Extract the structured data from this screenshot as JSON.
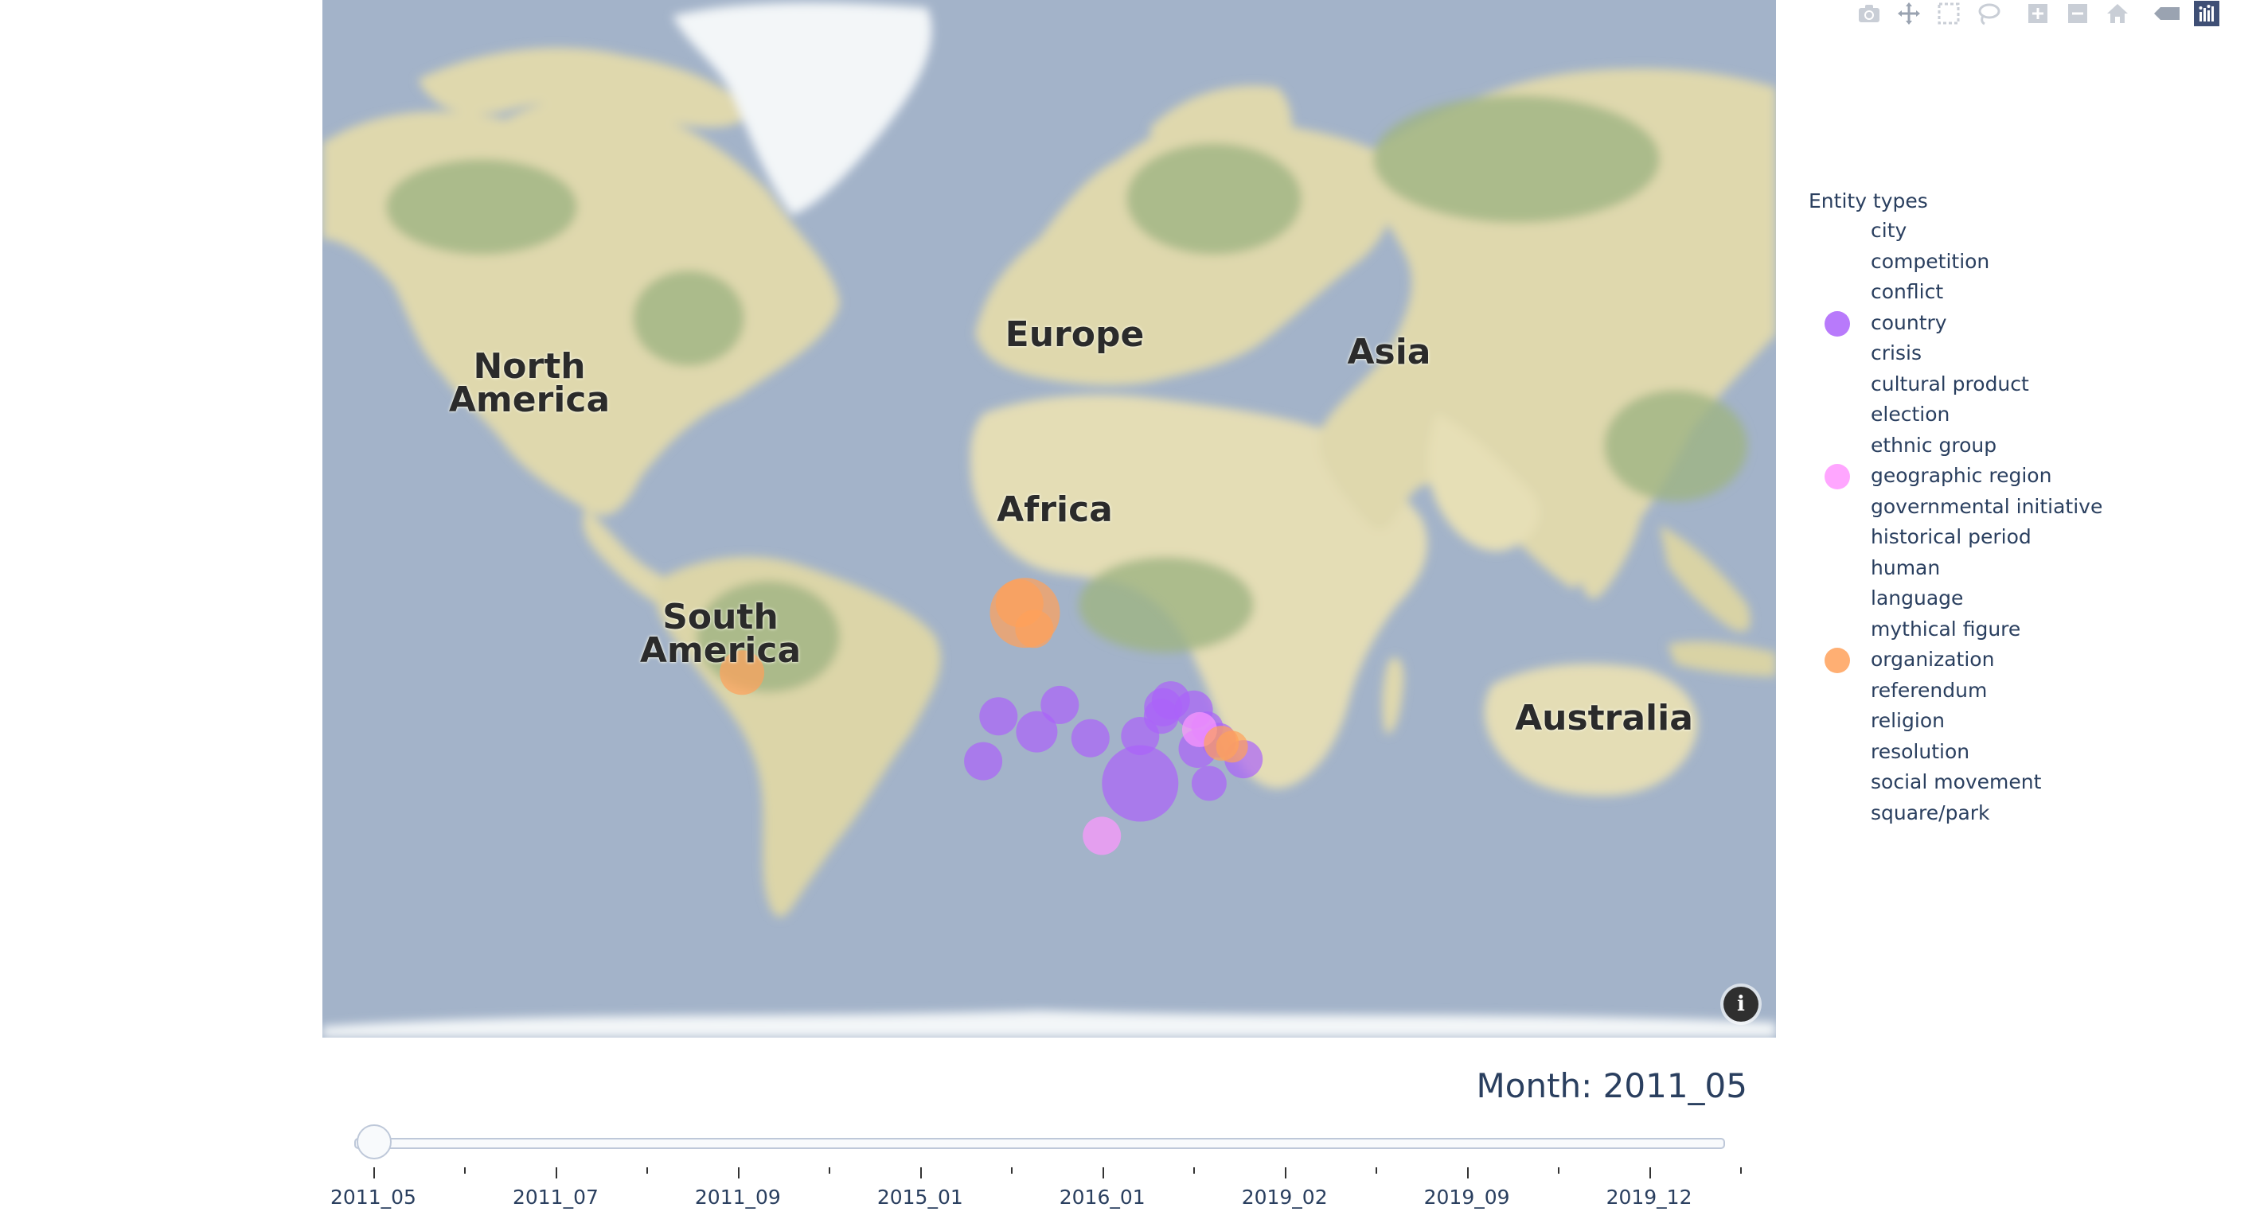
{
  "modebar": {
    "icons": [
      "camera-icon",
      "pan-icon",
      "box-select-icon",
      "lasso-icon",
      "zoom-in-icon",
      "zoom-out-icon",
      "reset-home-icon",
      "hover-toggle-icon",
      "plotly-logo-icon"
    ]
  },
  "map": {
    "labels": {
      "north_america": "North\nAmerica",
      "south_america": "South\nAmerica",
      "europe": "Europe",
      "africa": "Africa",
      "asia": "Asia",
      "australia": "Australia"
    },
    "info_glyph": "i",
    "colors": {
      "ocean": "#a3b3c9",
      "land": "#e4ddb5",
      "forest": "#a9b98a",
      "ice": "#f3f6f8"
    },
    "markers": [
      {
        "type": "organization",
        "lat": 51.5,
        "lon": -0.1,
        "size": 44
      },
      {
        "type": "organization",
        "lat": 53.0,
        "lon": -1.5,
        "size": 30
      },
      {
        "type": "organization",
        "lat": 48.8,
        "lon": 2.35,
        "size": 24
      },
      {
        "type": "organization",
        "lat": 40.7,
        "lon": -74.0,
        "size": 28
      },
      {
        "type": "country",
        "lat": 34.0,
        "lon": 9.0,
        "size": 24
      },
      {
        "type": "country",
        "lat": 28.0,
        "lon": 3.0,
        "size": 26
      },
      {
        "type": "country",
        "lat": 31.5,
        "lon": -7.0,
        "size": 24
      },
      {
        "type": "country",
        "lat": 21.0,
        "lon": -11.0,
        "size": 24
      },
      {
        "type": "country",
        "lat": 26.5,
        "lon": 17.0,
        "size": 24
      },
      {
        "type": "country",
        "lat": 27.0,
        "lon": 30.0,
        "size": 24
      },
      {
        "type": "country",
        "lat": 15.5,
        "lon": 30.0,
        "size": 48
      },
      {
        "type": "country",
        "lat": 35.0,
        "lon": 38.0,
        "size": 24
      },
      {
        "type": "country",
        "lat": 33.5,
        "lon": 36.0,
        "size": 24
      },
      {
        "type": "country",
        "lat": 31.5,
        "lon": 35.5,
        "size": 22
      },
      {
        "type": "country",
        "lat": 33.0,
        "lon": 44.0,
        "size": 24
      },
      {
        "type": "country",
        "lat": 29.0,
        "lon": 47.5,
        "size": 20
      },
      {
        "type": "country",
        "lat": 26.0,
        "lon": 50.5,
        "size": 22
      },
      {
        "type": "country",
        "lat": 24.0,
        "lon": 45.0,
        "size": 24
      },
      {
        "type": "country",
        "lat": 21.5,
        "lon": 57.0,
        "size": 24
      },
      {
        "type": "country",
        "lat": 15.5,
        "lon": 48.0,
        "size": 22
      },
      {
        "type": "geographic region",
        "lat": 28.5,
        "lon": 45.5,
        "size": 22
      },
      {
        "type": "geographic region",
        "lat": 2.0,
        "lon": 20.0,
        "size": 24
      },
      {
        "type": "organization",
        "lat": 25.3,
        "lon": 51.2,
        "size": 22
      },
      {
        "type": "organization",
        "lat": 24.5,
        "lon": 54.0,
        "size": 20
      }
    ]
  },
  "legend": {
    "title": "Entity types",
    "items": [
      {
        "label": "city",
        "color": ""
      },
      {
        "label": "competition",
        "color": ""
      },
      {
        "label": "conflict",
        "color": ""
      },
      {
        "label": "country",
        "color": "#ab63fa"
      },
      {
        "label": "crisis",
        "color": ""
      },
      {
        "label": "cultural product",
        "color": ""
      },
      {
        "label": "election",
        "color": ""
      },
      {
        "label": "ethnic group",
        "color": ""
      },
      {
        "label": "geographic region",
        "color": "#ff97ff"
      },
      {
        "label": "governmental initiative",
        "color": ""
      },
      {
        "label": "historical period",
        "color": ""
      },
      {
        "label": "human",
        "color": ""
      },
      {
        "label": "language",
        "color": ""
      },
      {
        "label": "mythical figure",
        "color": ""
      },
      {
        "label": "organization",
        "color": "#ffa15a"
      },
      {
        "label": "referendum",
        "color": ""
      },
      {
        "label": "religion",
        "color": ""
      },
      {
        "label": "resolution",
        "color": ""
      },
      {
        "label": "social movement",
        "color": ""
      },
      {
        "label": "square/park",
        "color": ""
      }
    ]
  },
  "slider": {
    "current_label": "Month: 2011_05",
    "current_index": 0,
    "tick_labels": [
      "2011_05",
      "2011_07",
      "2011_09",
      "2015_01",
      "2016_01",
      "2019_02",
      "2019_09",
      "2019_12"
    ],
    "total_steps": 16
  }
}
